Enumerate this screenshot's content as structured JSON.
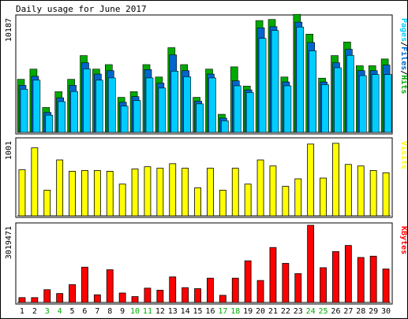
{
  "chart_data": {
    "type": "bar",
    "title": "Daily usage for June 2017",
    "categories": [
      "1",
      "2",
      "3",
      "4",
      "5",
      "6",
      "7",
      "8",
      "9",
      "10",
      "11",
      "12",
      "13",
      "14",
      "15",
      "16",
      "17",
      "18",
      "19",
      "20",
      "21",
      "22",
      "23",
      "24",
      "25",
      "26",
      "27",
      "28",
      "29",
      "30"
    ],
    "weekend_days": [
      "3",
      "4",
      "10",
      "11",
      "17",
      "18",
      "24",
      "25"
    ],
    "colors": {
      "pages": "#00ccff",
      "files": "#0066cc",
      "hits": "#00aa00",
      "visits": "#ffff00",
      "kbytes": "#ff0000",
      "weekday_label": "#000000",
      "weekend_label": "#00aa00",
      "plot_bg": "#ffffff",
      "frame": "#000000"
    },
    "panels": [
      {
        "id": "hits-files-pages",
        "max_label": "10187",
        "legend": [
          "Pages",
          "/",
          "Files",
          "/",
          "Hits"
        ],
        "legend_colors": [
          "#00ccff",
          "#000000",
          "#0066cc",
          "#000000",
          "#00aa00"
        ],
        "ylim": [
          0,
          10187
        ],
        "series": [
          {
            "name": "Hits",
            "values": [
              4700,
              5600,
              2200,
              3600,
              4700,
              6800,
              5600,
              6000,
              3100,
              3600,
              6000,
              4900,
              7500,
              6000,
              3100,
              5600,
              1600,
              5800,
              4100,
              9900,
              10000,
              4900,
              10450,
              8700,
              4800,
              6800,
              8000,
              5900,
              5900,
              6500
            ]
          },
          {
            "name": "Files",
            "values": [
              4300,
              5100,
              1900,
              3200,
              4300,
              6300,
              5300,
              5600,
              2800,
              3300,
              5700,
              4500,
              7000,
              5600,
              2900,
              5300,
              1400,
              4700,
              3900,
              9400,
              9500,
              4600,
              9900,
              8100,
              4600,
              6300,
              7500,
              5600,
              5600,
              6100
            ]
          },
          {
            "name": "Pages",
            "values": [
              4100,
              4900,
              1800,
              3000,
              3900,
              5900,
              4900,
              5100,
              2600,
              3100,
              5100,
              4200,
              5700,
              5200,
              2800,
              5100,
              1300,
              4400,
              3800,
              8600,
              9300,
              4400,
              9600,
              7500,
              4500,
              6000,
              7100,
              5300,
              5400,
              5400
            ]
          }
        ]
      },
      {
        "id": "visits",
        "max_label": "1001",
        "legend": [
          "Visits"
        ],
        "legend_colors": [
          "#ffff00"
        ],
        "ylim": [
          0,
          1001
        ],
        "series": [
          {
            "name": "Visits",
            "values": [
              610,
              900,
              340,
              740,
              590,
              600,
              600,
              590,
              420,
              620,
              650,
              630,
              690,
              630,
              370,
              630,
              340,
              630,
              420,
              740,
              660,
              390,
              490,
              950,
              500,
              960,
              680,
              660,
              600,
              570
            ]
          }
        ]
      },
      {
        "id": "kbytes",
        "max_label": "3019471",
        "legend": [
          "KBytes"
        ],
        "legend_colors": [
          "#ff0000"
        ],
        "ylim": [
          0,
          3019471
        ],
        "series": [
          {
            "name": "KBytes",
            "values": [
              190000,
              190000,
              500000,
              350000,
              700000,
              1380000,
              300000,
              1280000,
              370000,
              230000,
              560000,
              480000,
              1000000,
              580000,
              540000,
              950000,
              280000,
              950000,
              1630000,
              860000,
              2150000,
              1530000,
              1130000,
              3019471,
              1360000,
              1990000,
              2230000,
              1760000,
              1810000,
              1310000
            ]
          }
        ]
      }
    ]
  }
}
